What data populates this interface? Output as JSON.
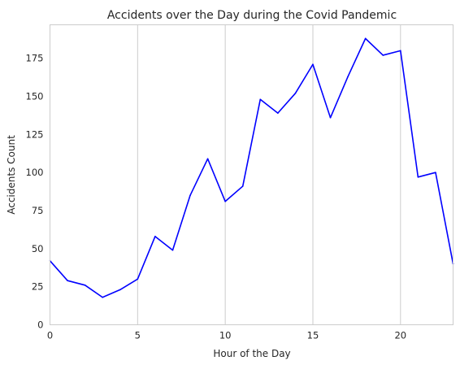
{
  "chart_data": {
    "type": "line",
    "title": "Accidents over the Day during the Covid Pandemic",
    "xlabel": "Hour of the Day",
    "ylabel": "Accidents Count",
    "xlim": [
      0,
      23
    ],
    "ylim": [
      0,
      197
    ],
    "x_ticks": [
      0,
      5,
      10,
      15,
      20
    ],
    "y_ticks": [
      0,
      25,
      50,
      75,
      100,
      125,
      150,
      175
    ],
    "grid": {
      "vertical": true,
      "horizontal": false
    },
    "line_color": "#0000ff",
    "series": [
      {
        "x": [
          0,
          1,
          2,
          3,
          4,
          5,
          6,
          7,
          8,
          9,
          10,
          11,
          12,
          13,
          14,
          15,
          16,
          17,
          18,
          19,
          20,
          21,
          22,
          23
        ],
        "values": [
          42,
          29,
          26,
          18,
          23,
          30,
          58,
          49,
          85,
          109,
          81,
          91,
          148,
          139,
          152,
          171,
          136,
          163,
          188,
          177,
          180,
          97,
          100,
          40
        ]
      }
    ]
  }
}
